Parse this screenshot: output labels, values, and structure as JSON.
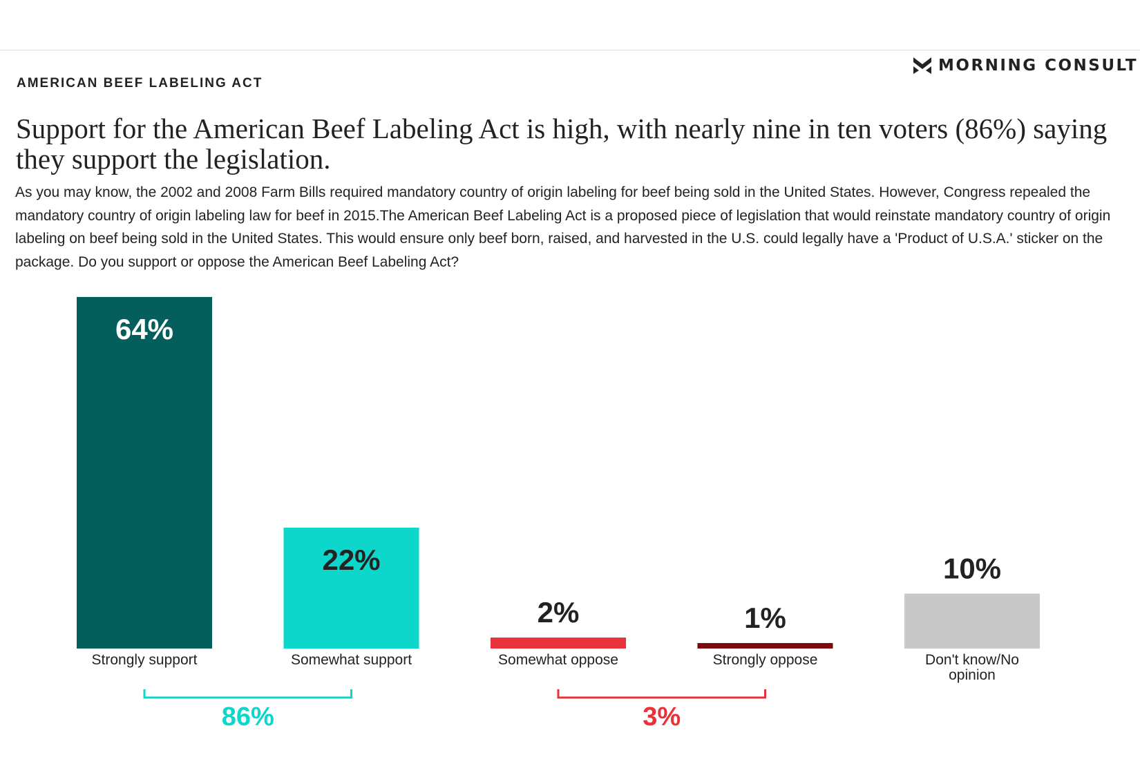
{
  "brand": {
    "name": "MORNING CONSULT",
    "icon": "morning-consult-logo-icon"
  },
  "kicker": "AMERICAN BEEF LABELING ACT",
  "title": "Support for the American Beef Labeling Act is high, with nearly nine in ten voters (86%) saying they support the legislation.",
  "description": "As you may know, the 2002 and 2008 Farm Bills required mandatory country of origin labeling for beef being sold in the United States. However, Congress repealed the mandatory country of origin labeling law for beef in 2015.The American Beef Labeling Act is a proposed piece of legislation that would reinstate mandatory country of origin labeling on beef being sold in the United States. This would ensure only beef born, raised, and harvested in the U.S. could legally have a 'Product of U.S.A.' sticker on the package. Do you support or oppose the American Beef Labeling Act?",
  "chart_data": {
    "type": "bar",
    "categories": [
      "Strongly support",
      "Somewhat support",
      "Somewhat oppose",
      "Strongly oppose",
      "Don't know/No opinion"
    ],
    "values": [
      64,
      22,
      2,
      1,
      10
    ],
    "value_labels": [
      "64%",
      "22%",
      "2%",
      "1%",
      "10%"
    ],
    "colors": [
      "#045e5b",
      "#0dd6cb",
      "#e8323a",
      "#7a0a0f",
      "#c8c8c8"
    ],
    "ylim": [
      0,
      64
    ],
    "grid": false,
    "groups": [
      {
        "label": "86%",
        "from": 0,
        "to": 1,
        "color": "#0dd6cb"
      },
      {
        "label": "3%",
        "from": 2,
        "to": 3,
        "color": "#e8323a"
      }
    ]
  }
}
